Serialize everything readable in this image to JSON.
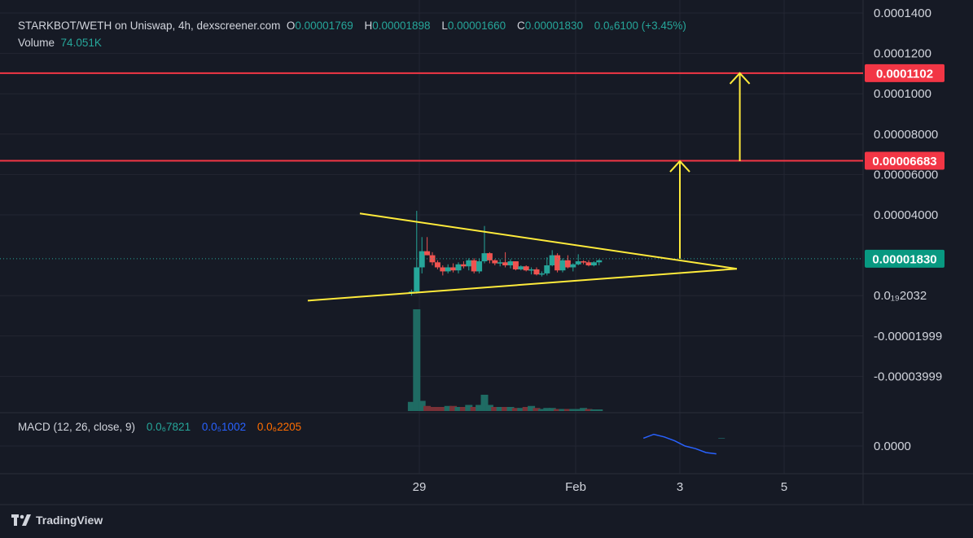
{
  "header": {
    "symbol": "STARKBOT/WETH on Uniswap, 4h, dexscreener.com",
    "open_label": "O",
    "open_value": "0.00001769",
    "high_label": "H",
    "high_value": "0.00001898",
    "low_label": "L",
    "low_value": "0.00001660",
    "close_label": "C",
    "close_value": "0.00001830",
    "change": "0.0₆6100 (+3.45%)",
    "volume_label": "Volume",
    "volume_value": "74.051K"
  },
  "macd": {
    "title": "MACD (12, 26, close, 9)",
    "v1": "0.0₆7821",
    "v2": "0.0₅1002",
    "v3": "0.0₆2205",
    "axis_label": "0.0000"
  },
  "footer": {
    "brand": "TradingView"
  },
  "colors": {
    "up": "#26a69a",
    "down": "#ef5350",
    "bg": "#161a25",
    "level": "#f23645",
    "pattern": "#ffeb3b",
    "macd_line": "#2962ff"
  },
  "chart_data": {
    "type": "candlestick",
    "y_axis_ticks": [
      "0.0001400",
      "0.0001200",
      "0.0001000",
      "0.00008000",
      "0.00006000",
      "0.00004000",
      "0.0₁₉2032",
      "-0.00001999",
      "-0.00003999"
    ],
    "ylim": [
      -5e-05,
      0.00014
    ],
    "x_axis_ticks": [
      {
        "label": "29",
        "x": 28.0
      },
      {
        "label": "Feb",
        "x": 31.0
      },
      {
        "label": "3",
        "x": 33.0
      },
      {
        "label": "5",
        "x": 35.0
      }
    ],
    "price_labels": [
      {
        "text": "0.0001102",
        "value": 0.0001102,
        "color": "#f23645"
      },
      {
        "text": "0.00006683",
        "value": 6.683e-05,
        "color": "#f23645"
      },
      {
        "text": "0.00001830",
        "value": 1.83e-05,
        "color": "#089981"
      }
    ],
    "horizontal_levels": [
      0.0001102,
      6.683e-05
    ],
    "triangle": {
      "upper": [
        [
          27.0,
          4.07e-05
        ],
        [
          34.0,
          1.33e-05
        ]
      ],
      "lower": [
        [
          26.0,
          -2.5e-06
        ],
        [
          34.0,
          1.33e-05
        ]
      ]
    },
    "arrows": [
      {
        "x": 33.0,
        "from": 1.83e-05,
        "to": 6.66e-05
      },
      {
        "x": 34.15,
        "from": 6.66e-05,
        "to": 0.0001102
      }
    ],
    "candles": [
      {
        "t": 27.85,
        "o": 1e-06,
        "h": 3e-06,
        "l": 0.0,
        "c": 2e-06
      },
      {
        "t": 27.95,
        "o": 2e-06,
        "h": 4.2e-05,
        "l": 1e-06,
        "c": 1.4e-05
      },
      {
        "t": 28.05,
        "o": 1.4e-05,
        "h": 2.9e-05,
        "l": 1.1e-05,
        "c": 2.2e-05
      },
      {
        "t": 28.15,
        "o": 2.2e-05,
        "h": 2.9e-05,
        "l": 2e-05,
        "c": 2e-05
      },
      {
        "t": 28.25,
        "o": 2e-05,
        "h": 2.15e-05,
        "l": 1.5e-05,
        "c": 1.65e-05
      },
      {
        "t": 28.35,
        "o": 1.65e-05,
        "h": 1.75e-05,
        "l": 1.3e-05,
        "c": 1.4e-05
      },
      {
        "t": 28.45,
        "o": 1.4e-05,
        "h": 1.5e-05,
        "l": 1e-05,
        "c": 1.2e-05
      },
      {
        "t": 28.55,
        "o": 1.2e-05,
        "h": 1.55e-05,
        "l": 1.1e-05,
        "c": 1.4e-05
      },
      {
        "t": 28.65,
        "o": 1.4e-05,
        "h": 1.6e-05,
        "l": 1.15e-05,
        "c": 1.25e-05
      },
      {
        "t": 28.75,
        "o": 1.25e-05,
        "h": 1.65e-05,
        "l": 1.1e-05,
        "c": 1.55e-05
      },
      {
        "t": 28.85,
        "o": 1.55e-05,
        "h": 1.7e-05,
        "l": 1.35e-05,
        "c": 1.45e-05
      },
      {
        "t": 28.95,
        "o": 1.45e-05,
        "h": 1.85e-05,
        "l": 1.25e-05,
        "c": 1.75e-05
      },
      {
        "t": 29.05,
        "o": 1.75e-05,
        "h": 1.85e-05,
        "l": 1.1e-05,
        "c": 1.2e-05
      },
      {
        "t": 29.15,
        "o": 1.2e-05,
        "h": 1.85e-05,
        "l": 1.1e-05,
        "c": 1.7e-05
      },
      {
        "t": 29.25,
        "o": 1.7e-05,
        "h": 3.45e-05,
        "l": 1.6e-05,
        "c": 2.1e-05
      },
      {
        "t": 29.35,
        "o": 2.1e-05,
        "h": 2.15e-05,
        "l": 1.6e-05,
        "c": 1.75e-05
      },
      {
        "t": 29.45,
        "o": 1.75e-05,
        "h": 1.8e-05,
        "l": 1.5e-05,
        "c": 1.6e-05
      },
      {
        "t": 29.55,
        "o": 1.6e-05,
        "h": 1.8e-05,
        "l": 1.45e-05,
        "c": 1.65e-05
      },
      {
        "t": 29.65,
        "o": 1.65e-05,
        "h": 2.15e-05,
        "l": 1.4e-05,
        "c": 1.5e-05
      },
      {
        "t": 29.75,
        "o": 1.5e-05,
        "h": 1.8e-05,
        "l": 1.35e-05,
        "c": 1.7e-05
      },
      {
        "t": 29.85,
        "o": 1.7e-05,
        "h": 1.7e-05,
        "l": 1.25e-05,
        "c": 1.3e-05
      },
      {
        "t": 29.95,
        "o": 1.3e-05,
        "h": 1.5e-05,
        "l": 1.25e-05,
        "c": 1.45e-05
      },
      {
        "t": 30.05,
        "o": 1.45e-05,
        "h": 1.5e-05,
        "l": 1.2e-05,
        "c": 1.25e-05
      },
      {
        "t": 30.15,
        "o": 1.25e-05,
        "h": 1.4e-05,
        "l": 1.05e-05,
        "c": 1.3e-05
      },
      {
        "t": 30.25,
        "o": 1.3e-05,
        "h": 1.4e-05,
        "l": 1e-05,
        "c": 1.05e-05
      },
      {
        "t": 30.35,
        "o": 1.05e-05,
        "h": 1.2e-05,
        "l": 9.5e-06,
        "c": 1.1e-05
      },
      {
        "t": 30.45,
        "o": 1.1e-05,
        "h": 1.9e-05,
        "l": 1e-05,
        "c": 1.5e-05
      },
      {
        "t": 30.55,
        "o": 1.5e-05,
        "h": 2.25e-05,
        "l": 1.45e-05,
        "c": 2e-05
      },
      {
        "t": 30.65,
        "o": 2e-05,
        "h": 2.1e-05,
        "l": 1.15e-05,
        "c": 1.25e-05
      },
      {
        "t": 30.75,
        "o": 1.25e-05,
        "h": 1.85e-05,
        "l": 1.15e-05,
        "c": 1.75e-05
      },
      {
        "t": 30.85,
        "o": 1.75e-05,
        "h": 2e-05,
        "l": 1.35e-05,
        "c": 1.4e-05
      },
      {
        "t": 30.95,
        "o": 1.4e-05,
        "h": 1.6e-05,
        "l": 1.2e-05,
        "c": 1.55e-05
      },
      {
        "t": 31.05,
        "o": 1.55e-05,
        "h": 2.05e-05,
        "l": 1.5e-05,
        "c": 1.7e-05
      },
      {
        "t": 31.15,
        "o": 1.7e-05,
        "h": 1.75e-05,
        "l": 1.55e-05,
        "c": 1.65e-05
      },
      {
        "t": 31.25,
        "o": 1.65e-05,
        "h": 1.75e-05,
        "l": 1.45e-05,
        "c": 1.5e-05
      },
      {
        "t": 31.35,
        "o": 1.5e-05,
        "h": 1.7e-05,
        "l": 1.45e-05,
        "c": 1.65e-05
      },
      {
        "t": 31.45,
        "o": 1.65e-05,
        "h": 1.8e-05,
        "l": 1.5e-05,
        "c": 1.75e-05
      }
    ],
    "volume": [
      {
        "t": 27.85,
        "v": 0.09,
        "up": true
      },
      {
        "t": 27.95,
        "v": 1.0,
        "up": true
      },
      {
        "t": 28.05,
        "v": 0.1,
        "up": true
      },
      {
        "t": 28.15,
        "v": 0.05,
        "up": false
      },
      {
        "t": 28.25,
        "v": 0.04,
        "up": false
      },
      {
        "t": 28.35,
        "v": 0.04,
        "up": false
      },
      {
        "t": 28.45,
        "v": 0.04,
        "up": false
      },
      {
        "t": 28.55,
        "v": 0.05,
        "up": true
      },
      {
        "t": 28.65,
        "v": 0.05,
        "up": false
      },
      {
        "t": 28.75,
        "v": 0.04,
        "up": true
      },
      {
        "t": 28.85,
        "v": 0.04,
        "up": false
      },
      {
        "t": 28.95,
        "v": 0.06,
        "up": true
      },
      {
        "t": 29.05,
        "v": 0.04,
        "up": false
      },
      {
        "t": 29.15,
        "v": 0.06,
        "up": true
      },
      {
        "t": 29.25,
        "v": 0.16,
        "up": true
      },
      {
        "t": 29.35,
        "v": 0.06,
        "up": true
      },
      {
        "t": 29.45,
        "v": 0.04,
        "up": false
      },
      {
        "t": 29.55,
        "v": 0.04,
        "up": true
      },
      {
        "t": 29.65,
        "v": 0.04,
        "up": false
      },
      {
        "t": 29.75,
        "v": 0.04,
        "up": true
      },
      {
        "t": 29.85,
        "v": 0.03,
        "up": false
      },
      {
        "t": 29.95,
        "v": 0.03,
        "up": true
      },
      {
        "t": 30.05,
        "v": 0.04,
        "up": false
      },
      {
        "t": 30.15,
        "v": 0.05,
        "up": true
      },
      {
        "t": 30.25,
        "v": 0.03,
        "up": false
      },
      {
        "t": 30.35,
        "v": 0.02,
        "up": true
      },
      {
        "t": 30.45,
        "v": 0.03,
        "up": true
      },
      {
        "t": 30.55,
        "v": 0.03,
        "up": true
      },
      {
        "t": 30.65,
        "v": 0.02,
        "up": false
      },
      {
        "t": 30.75,
        "v": 0.02,
        "up": true
      },
      {
        "t": 30.85,
        "v": 0.02,
        "up": false
      },
      {
        "t": 30.95,
        "v": 0.02,
        "up": true
      },
      {
        "t": 31.05,
        "v": 0.02,
        "up": true
      },
      {
        "t": 31.15,
        "v": 0.03,
        "up": true
      },
      {
        "t": 31.25,
        "v": 0.02,
        "up": false
      },
      {
        "t": 31.35,
        "v": 0.01,
        "up": true
      },
      {
        "t": 31.45,
        "v": 0.01,
        "up": true
      }
    ],
    "macd_line": [
      [
        32.3,
        -6e-06
      ],
      [
        32.5,
        -9e-06
      ],
      [
        32.7,
        -7e-06
      ],
      [
        32.9,
        -4e-06
      ],
      [
        33.1,
        0.0
      ],
      [
        33.3,
        2e-06
      ],
      [
        33.5,
        5e-06
      ],
      [
        33.7,
        6e-06
      ]
    ],
    "macd_hist": [
      {
        "t": 33.8,
        "v": -6e-06
      }
    ]
  }
}
